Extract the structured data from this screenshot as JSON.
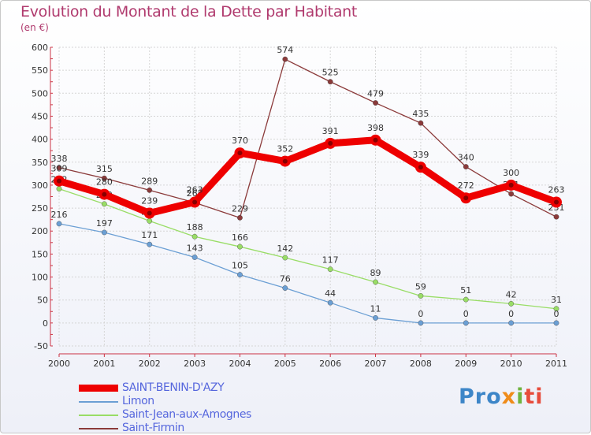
{
  "header": {
    "title": "Evolution du Montant de la Dette par Habitant",
    "unit": "(en €)"
  },
  "logo": {
    "text": "Proxiti"
  },
  "chart_data": {
    "type": "line",
    "title": "Evolution du Montant de la Dette par Habitant",
    "subtitle": "(en €)",
    "xlabel": "",
    "ylabel": "",
    "categories": [
      "2000",
      "2001",
      "2002",
      "2003",
      "2004",
      "2005",
      "2006",
      "2007",
      "2008",
      "2009",
      "2010",
      "2011"
    ],
    "ylim": [
      -50,
      600
    ],
    "yticks": [
      "-50",
      "0",
      "50",
      "100",
      "150",
      "200",
      "250",
      "300",
      "350",
      "400",
      "450",
      "500",
      "550",
      "600"
    ],
    "grid": true,
    "legend": "bottom-left",
    "series": [
      {
        "name": "Saint-Firmin",
        "color": "#8b3a3a",
        "values": [
          338,
          315,
          289,
          262,
          229,
          574,
          525,
          479,
          435,
          340,
          281,
          231
        ],
        "labels": [
          "338",
          "315",
          "289",
          "262",
          "229",
          "574",
          "525",
          "479",
          "435",
          "340",
          "281",
          "231"
        ]
      },
      {
        "name": "Saint-Jean-aux-Amognes",
        "color": "#99dd66",
        "values": [
          292,
          259,
          222,
          188,
          166,
          142,
          117,
          89,
          59,
          51,
          42,
          31
        ],
        "labels": [
          "292",
          "259",
          "222",
          "188",
          "166",
          "142",
          "117",
          "89",
          "59",
          "51",
          "42",
          "31"
        ]
      },
      {
        "name": "Limon",
        "color": "#6b9fd4",
        "values": [
          216,
          197,
          171,
          143,
          105,
          76,
          44,
          11,
          0,
          0,
          0,
          0
        ],
        "labels": [
          "216",
          "197",
          "171",
          "143",
          "105",
          "76",
          "44",
          "11",
          "0",
          "0",
          "0",
          "0"
        ]
      },
      {
        "name": "SAINT-BENIN-D'AZY",
        "color": "#ee0000",
        "values": [
          309,
          280,
          239,
          263,
          370,
          352,
          391,
          398,
          339,
          272,
          300,
          263
        ],
        "labels": [
          "309",
          "280",
          "239",
          "263",
          "370",
          "352",
          "391",
          "398",
          "339",
          "272",
          "300",
          "263"
        ]
      }
    ]
  }
}
